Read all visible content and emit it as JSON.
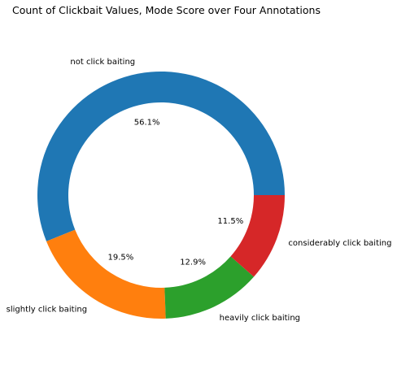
{
  "chart_data": {
    "type": "pie",
    "style": "donut",
    "title": "Count of Clickbait Values, Mode Score over Four Annotations",
    "categories": [
      "not click baiting",
      "slightly click baiting",
      "heavily click baiting",
      "considerably click baiting"
    ],
    "values": [
      56.1,
      19.5,
      12.9,
      11.5
    ],
    "labels": [
      "56.1%",
      "19.5%",
      "12.9%",
      "11.5%"
    ],
    "colors": [
      "#1f77b4",
      "#ff7f0e",
      "#2ca02c",
      "#d62728"
    ],
    "start_angle_deg": 0,
    "direction": "counterclockwise",
    "legend": "none"
  }
}
